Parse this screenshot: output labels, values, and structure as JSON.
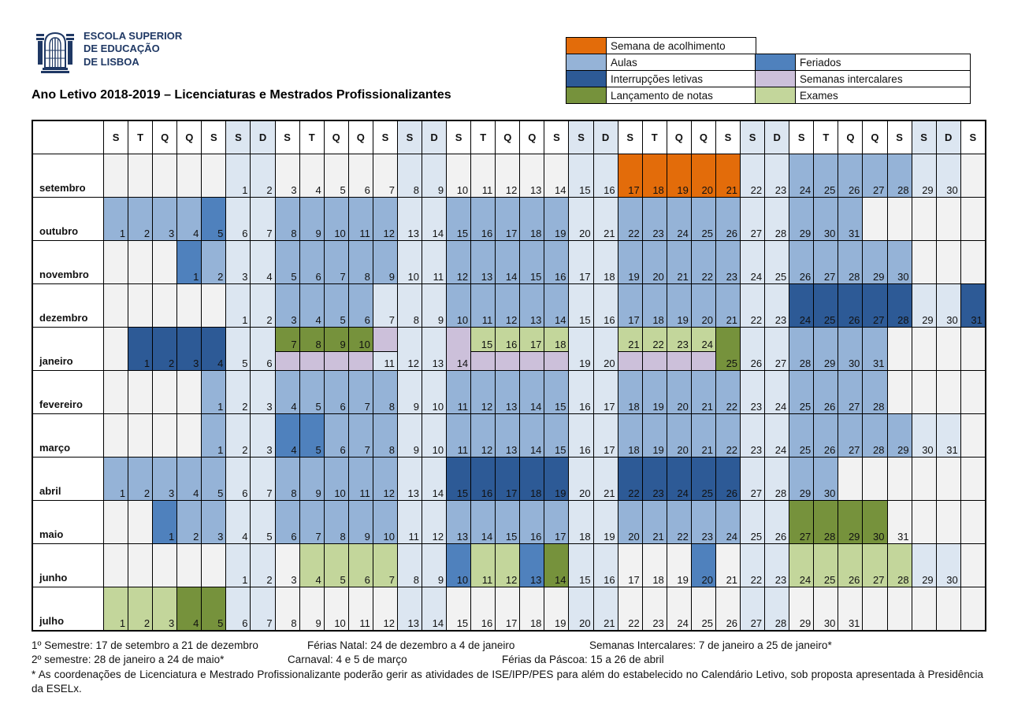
{
  "logo": {
    "lines": [
      "ESCOLA SUPERIOR",
      "DE EDUCAÇÃO",
      "DE LISBOA"
    ]
  },
  "title": "Ano Letivo 2018-2019 – Licenciaturas e Mestrados Profissionalizantes",
  "colors": {
    "g": "#F2F2F2",
    "w": "#DCE6F1",
    "a": "#95B3D7",
    "f": "#4F81BD",
    "i": "#2D5A96",
    "o": "#E36C0A",
    "n": "#76923C",
    "e": "#C3D69B",
    "s": "#CCC0DA"
  },
  "legend": {
    "left": [
      {
        "key": "o",
        "label": "Semana de acolhimento"
      },
      {
        "key": "a",
        "label": "Aulas"
      },
      {
        "key": "i",
        "label": "Interrupções letivas"
      },
      {
        "key": "n",
        "label": "Lançamento de notas"
      }
    ],
    "right": [
      {
        "key": "f",
        "label": "Feriados"
      },
      {
        "key": "s",
        "label": "Semanas intercalares"
      },
      {
        "key": "e",
        "label": "Exames"
      }
    ]
  },
  "calendar": {
    "dow": [
      "S",
      "T",
      "Q",
      "Q",
      "S",
      "S",
      "D",
      "S",
      "T",
      "Q",
      "Q",
      "S",
      "S",
      "D",
      "S",
      "T",
      "Q",
      "Q",
      "S",
      "S",
      "D",
      "S",
      "T",
      "Q",
      "Q",
      "S",
      "S",
      "D",
      "S",
      "T",
      "Q",
      "Q",
      "S",
      "S",
      "D",
      "S"
    ],
    "months": [
      {
        "name": "setembro",
        "cells": [
          "",
          "",
          "",
          "",
          "",
          "1 w",
          "2 w",
          "3 g",
          "4 g",
          "5 g",
          "6 g",
          "7 g",
          "8 w",
          "9 w",
          "10 g",
          "11 g",
          "12 g",
          "13 g",
          "14 g",
          "15 w",
          "16 w",
          "17 o",
          "18 o",
          "19 o",
          "20 o",
          "21 o",
          "22 w",
          "23 w",
          "24 a",
          "25 a",
          "26 a",
          "27 a",
          "28 a",
          "29 w",
          "30 w",
          ""
        ]
      },
      {
        "name": "outubro",
        "cells": [
          "1 a",
          "2 a",
          "3 a",
          "4 a",
          "5 f",
          "6 w",
          "7 w",
          "8 a",
          "9 a",
          "10 a",
          "11 a",
          "12 a",
          "13 w",
          "14 w",
          "15 a",
          "16 a",
          "17 a",
          "18 a",
          "19 a",
          "20 w",
          "21 w",
          "22 a",
          "23 a",
          "24 a",
          "25 a",
          "26 a",
          "27 w",
          "28 w",
          "29 a",
          "30 a",
          "31 a",
          "",
          "",
          "",
          "",
          ""
        ]
      },
      {
        "name": "novembro",
        "cells": [
          "",
          "",
          "",
          "1 f",
          "2 a",
          "3 w",
          "4 w",
          "5 a",
          "6 a",
          "7 a",
          "8 a",
          "9 a",
          "10 w",
          "11 w",
          "12 a",
          "13 a",
          "14 a",
          "15 a",
          "16 a",
          "17 w",
          "18 w",
          "19 a",
          "20 a",
          "21 a",
          "22 a",
          "23 a",
          "24 w",
          "25 w",
          "26 a",
          "27 a",
          "28 a",
          "29 a",
          "30 a",
          "",
          "",
          ""
        ]
      },
      {
        "name": "dezembro",
        "cells": [
          "",
          "",
          "",
          "",
          "",
          "1 w",
          "2 w",
          "3 a",
          "4 a",
          "5 a",
          "6 a",
          "7 w",
          "8 w",
          "9 w",
          "10 a",
          "11 a",
          "12 a",
          "13 a",
          "14 a",
          "15 w",
          "16 w",
          "17 a",
          "18 a",
          "19 a",
          "20 a",
          "21 a",
          "22 w",
          "23 w",
          "24 i",
          "25 i",
          "26 i",
          "27 i",
          "28 i",
          "29 w",
          "30 w",
          "31 i"
        ]
      },
      {
        "name": "janeiro",
        "cells": [
          "",
          "1 i",
          "2 i",
          "3 i",
          "4 i",
          "5 w",
          "6 w",
          "7 n s t",
          "8 n s t",
          "9 n s t",
          "10 n s t",
          "11 s w",
          "12 w",
          "13 w",
          "14 s",
          "15 e s t",
          "16 e s t",
          "17 e s t",
          "18 e s t",
          "19 w",
          "20 w",
          "21 e s t",
          "22 e s t",
          "23 e s t",
          "24 e s t",
          "25 n",
          "26 w",
          "27 w",
          "28 a",
          "29 a",
          "30 a",
          "31 a",
          "",
          "",
          "",
          ""
        ]
      },
      {
        "name": "fevereiro",
        "cells": [
          "",
          "",
          "",
          "",
          "1 a",
          "2 w",
          "3 w",
          "4 a",
          "5 a",
          "6 a",
          "7 a",
          "8 a",
          "9 w",
          "10 w",
          "11 a",
          "12 a",
          "13 a",
          "14 a",
          "15 a",
          "16 w",
          "17 w",
          "18 a",
          "19 a",
          "20 a",
          "21 a",
          "22 a",
          "23 w",
          "24 w",
          "25 a",
          "26 a",
          "27 a",
          "28 a",
          "",
          "",
          "",
          ""
        ]
      },
      {
        "name": "março",
        "cells": [
          "",
          "",
          "",
          "",
          "1 a",
          "2 w",
          "3 w",
          "4 f",
          "5 f",
          "6 a",
          "7 a",
          "8 a",
          "9 w",
          "10 w",
          "11 a",
          "12 a",
          "13 a",
          "14 a",
          "15 a",
          "16 w",
          "17 w",
          "18 a",
          "19 a",
          "20 a",
          "21 a",
          "22 a",
          "23 w",
          "24 w",
          "25 a",
          "26 a",
          "27 a",
          "28 a",
          "29 a",
          "30 w",
          "31 w",
          ""
        ]
      },
      {
        "name": "abril",
        "cells": [
          "1 a",
          "2 a",
          "3 a",
          "4 a",
          "5 a",
          "6 w",
          "7 w",
          "8 a",
          "9 a",
          "10 a",
          "11 a",
          "12 a",
          "13 w",
          "14 w",
          "15 i",
          "16 i",
          "17 i",
          "18 i",
          "19 i",
          "20 w",
          "21 w",
          "22 i",
          "23 i",
          "24 i",
          "25 i",
          "26 i",
          "27 w",
          "28 w",
          "29 a",
          "30 a",
          "",
          "",
          "",
          "",
          "",
          ""
        ]
      },
      {
        "name": "maio",
        "cells": [
          "",
          "",
          "1 f",
          "2 a",
          "3 a",
          "4 w",
          "5 w",
          "6 a",
          "7 a",
          "8 a",
          "9 a",
          "10 a",
          "11 w",
          "12 w",
          "13 a",
          "14 a",
          "15 a",
          "16 a",
          "17 a",
          "18 w",
          "19 w",
          "20 a",
          "21 a",
          "22 a",
          "23 a",
          "24 a",
          "25 w",
          "26 w",
          "27 n",
          "28 n",
          "29 n",
          "30 n",
          "31 g",
          "",
          "",
          ""
        ]
      },
      {
        "name": "junho",
        "cells": [
          "",
          "",
          "",
          "",
          "",
          "1 w",
          "2 w",
          "3 g",
          "4 e",
          "5 e",
          "6 e",
          "7 e",
          "8 w",
          "9 w",
          "10 f",
          "11 e",
          "12 e",
          "13 f",
          "14 n",
          "15 w",
          "16 w",
          "17 g",
          "18 g",
          "19 g",
          "20 f",
          "21 g",
          "22 w",
          "23 w",
          "24 e",
          "25 e",
          "26 e",
          "27 e",
          "28 e",
          "29 w",
          "30 w",
          ""
        ]
      },
      {
        "name": "julho",
        "cells": [
          "1 e",
          "2 e",
          "3 e",
          "4 n",
          "5 n",
          "6 w",
          "7 w",
          "8 g",
          "9 g",
          "10 g",
          "11 g",
          "12 g",
          "13 w",
          "14 w",
          "15 g",
          "16 g",
          "17 g",
          "18 g",
          "19 g",
          "20 w",
          "21 w",
          "22 g",
          "23 g",
          "24 g",
          "25 g",
          "26 g",
          "27 w",
          "28 w",
          "29 g",
          "30 g",
          "31 g",
          "",
          "",
          "",
          "",
          ""
        ]
      }
    ]
  },
  "footer": {
    "row1": [
      "1º Semestre: 17 de setembro a 21 de dezembro",
      "Férias Natal: 24 de dezembro a 4 de janeiro",
      "Semanas Intercalares: 7 de janeiro a 25 de janeiro*"
    ],
    "row2": [
      "2º semestre: 28 de janeiro a 24 de maio*",
      "Carnaval: 4 e 5 de março",
      "Férias da Páscoa: 15 a 26 de abril"
    ],
    "note": "* As coordenações de Licenciatura e Mestrado Profissionalizante poderão gerir as atividades de ISE/IPP/PES para além do estabelecido no Calendário Letivo, sob proposta apresentada à Presidência da ESELx."
  }
}
